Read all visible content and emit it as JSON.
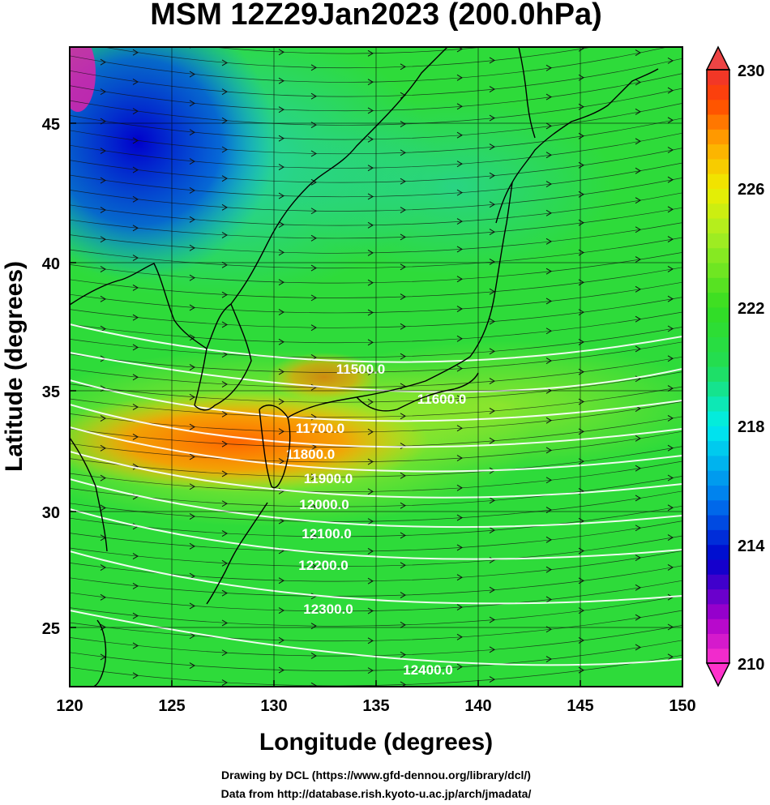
{
  "chart_data": {
    "type": "heatmap",
    "title": "MSM 12Z29Jan2023 (200.0hPa)",
    "xlabel": "Longitude (degrees)",
    "ylabel": "Latitude  (degrees)",
    "xlim": [
      120,
      150
    ],
    "ylim": [
      22.4,
      47.6
    ],
    "xticks": [
      "120",
      "125",
      "130",
      "135",
      "140",
      "145",
      "150"
    ],
    "yticks": [
      "25",
      "30",
      "35",
      "40",
      "45"
    ],
    "grid": true,
    "colorbar": {
      "min": 210,
      "max": 230,
      "ticks": [
        "210",
        "214",
        "218",
        "222",
        "226",
        "230"
      ],
      "stops": [
        {
          "value": 210,
          "color": "#ff33cc"
        },
        {
          "value": 211.5,
          "color": "#aa00cc"
        },
        {
          "value": 213.5,
          "color": "#0000cc"
        },
        {
          "value": 215.5,
          "color": "#0077ee"
        },
        {
          "value": 218,
          "color": "#00eeee"
        },
        {
          "value": 220,
          "color": "#22dd55"
        },
        {
          "value": 222,
          "color": "#33dd22"
        },
        {
          "value": 224.5,
          "color": "#aaee22"
        },
        {
          "value": 226,
          "color": "#eeee00"
        },
        {
          "value": 227.5,
          "color": "#ffaa00"
        },
        {
          "value": 229,
          "color": "#ff4400"
        },
        {
          "value": 230,
          "color": "#ee3333"
        }
      ]
    },
    "contours": [
      {
        "value": 11500.0,
        "label": "11500.0"
      },
      {
        "value": 11600.0,
        "label": "11600.0"
      },
      {
        "value": 11700.0,
        "label": "11700.0"
      },
      {
        "value": 11800.0,
        "label": "11800.0"
      },
      {
        "value": 11900.0,
        "label": "11900.0"
      },
      {
        "value": 12000.0,
        "label": "12000.0"
      },
      {
        "value": 12100.0,
        "label": "12100.0"
      },
      {
        "value": 12200.0,
        "label": "12200.0"
      },
      {
        "value": 12300.0,
        "label": "12300.0"
      },
      {
        "value": 12400.0,
        "label": "12400.0"
      }
    ]
  },
  "credits": {
    "line1": "Drawing by DCL (https://www.gfd-dennou.org/library/dcl/)",
    "line2": "Data from http://database.rish.kyoto-u.ac.jp/arch/jmadata/"
  }
}
